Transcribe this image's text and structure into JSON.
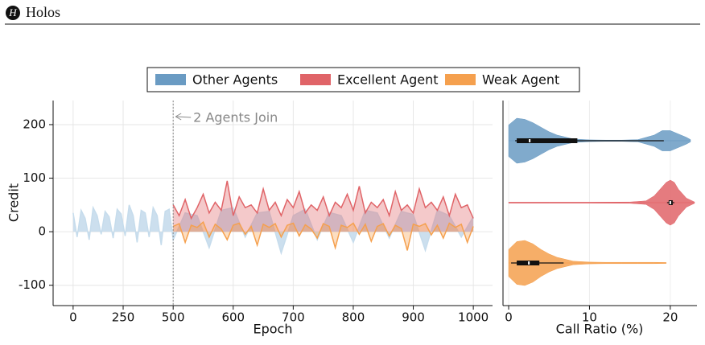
{
  "header": {
    "title": "Holos"
  },
  "chart_data": [
    {
      "type": "line",
      "annotation": {
        "text": "2 Agents Join",
        "x": 500
      },
      "xlabel": "Epoch",
      "ylabel": "Credit",
      "xlim": [
        -100,
        1032
      ],
      "ylim": [
        -138,
        245
      ],
      "xticks": [
        0,
        250,
        500,
        600,
        700,
        800,
        900,
        1000
      ],
      "yticks": [
        -100,
        0,
        100,
        200
      ],
      "grid": true,
      "series": [
        {
          "name": "Other Agents",
          "color": "#6a9bc3",
          "fill_color": "#c6dcec",
          "x": [
            0,
            20,
            40,
            60,
            80,
            100,
            120,
            140,
            160,
            180,
            200,
            220,
            240,
            260,
            280,
            300,
            320,
            340,
            360,
            380,
            400,
            420,
            440,
            460,
            480,
            500,
            520,
            540,
            560,
            580,
            600,
            620,
            640,
            660,
            680,
            700,
            720,
            740,
            760,
            780,
            800,
            820,
            840,
            860,
            880,
            900,
            920,
            940,
            960,
            980,
            1000
          ],
          "values": [
            35,
            -10,
            40,
            25,
            -15,
            45,
            30,
            -5,
            38,
            28,
            -12,
            42,
            33,
            -8,
            50,
            30,
            -20,
            40,
            35,
            -10,
            45,
            30,
            -25,
            38,
            42,
            -15,
            35,
            30,
            -30,
            40,
            45,
            -10,
            35,
            38,
            -40,
            30,
            42,
            -15,
            36,
            30,
            -20,
            40,
            35,
            -12,
            38,
            32,
            -35,
            40,
            30,
            -10,
            28
          ]
        },
        {
          "name": "Excellent Agent",
          "color": "#e06468",
          "x": [
            500,
            510,
            520,
            530,
            540,
            550,
            560,
            570,
            580,
            590,
            600,
            610,
            620,
            630,
            640,
            650,
            660,
            670,
            680,
            690,
            700,
            710,
            720,
            730,
            740,
            750,
            760,
            770,
            780,
            790,
            800,
            810,
            820,
            830,
            840,
            850,
            860,
            870,
            880,
            890,
            900,
            910,
            920,
            930,
            940,
            950,
            960,
            970,
            980,
            990,
            1000
          ],
          "values": [
            50,
            30,
            60,
            25,
            45,
            70,
            35,
            55,
            40,
            95,
            30,
            65,
            45,
            50,
            35,
            80,
            40,
            55,
            30,
            60,
            45,
            75,
            35,
            50,
            40,
            65,
            30,
            55,
            45,
            70,
            40,
            85,
            35,
            55,
            45,
            60,
            30,
            75,
            40,
            50,
            35,
            80,
            45,
            55,
            40,
            65,
            30,
            70,
            45,
            50,
            25
          ]
        },
        {
          "name": "Weak Agent",
          "color": "#f5a04e",
          "x": [
            500,
            510,
            520,
            530,
            540,
            550,
            560,
            570,
            580,
            590,
            600,
            610,
            620,
            630,
            640,
            650,
            660,
            670,
            680,
            690,
            700,
            710,
            720,
            730,
            740,
            750,
            760,
            770,
            780,
            790,
            800,
            810,
            820,
            830,
            840,
            850,
            860,
            870,
            880,
            890,
            900,
            910,
            920,
            930,
            940,
            950,
            960,
            970,
            980,
            990,
            1000
          ],
          "values": [
            10,
            15,
            -20,
            12,
            8,
            18,
            -10,
            14,
            5,
            -15,
            12,
            16,
            -5,
            10,
            -25,
            14,
            8,
            15,
            -10,
            12,
            16,
            -8,
            13,
            5,
            -12,
            15,
            10,
            -30,
            12,
            8,
            16,
            -5,
            14,
            -18,
            10,
            15,
            -8,
            12,
            6,
            -35,
            14,
            10,
            15,
            -6,
            12,
            -12,
            16,
            8,
            14,
            -20,
            10
          ]
        }
      ]
    },
    {
      "type": "violin",
      "xlabel": "Call Ratio (%)",
      "xlim": [
        -0.7,
        23.3
      ],
      "xticks": [
        0,
        10,
        20
      ],
      "grid": true,
      "violins": [
        {
          "color": "#6a9bc3",
          "kde_x": [
            0,
            1,
            2,
            3,
            4,
            5,
            6,
            8,
            10,
            12,
            14,
            16,
            18,
            19,
            20,
            21,
            22,
            22.5
          ],
          "density": [
            0.7,
            1,
            0.95,
            0.8,
            0.6,
            0.4,
            0.25,
            0.08,
            0.04,
            0.03,
            0.03,
            0.05,
            0.25,
            0.45,
            0.45,
            0.3,
            0.15,
            0.05
          ],
          "whislo": 0.8,
          "q1": 1,
          "median": 2.6,
          "q3": 8.5,
          "whishi": 19.2
        },
        {
          "color": "#e06468",
          "kde_x": [
            0,
            5,
            10,
            15,
            17,
            18,
            19,
            19.5,
            20,
            20.5,
            21,
            22,
            23
          ],
          "density": [
            0.02,
            0.02,
            0.02,
            0.03,
            0.08,
            0.3,
            0.7,
            0.9,
            1,
            0.9,
            0.6,
            0.2,
            0.03
          ],
          "whislo": 19.6,
          "q1": 19.8,
          "median": 20,
          "q3": 20.3,
          "whishi": 20.5
        },
        {
          "color": "#f5a04e",
          "kde_x": [
            0,
            1,
            2,
            3,
            4,
            5,
            6,
            8,
            10,
            12,
            14,
            16,
            18,
            19.5
          ],
          "density": [
            0.6,
            0.95,
            1,
            0.85,
            0.6,
            0.4,
            0.25,
            0.08,
            0.04,
            0.03,
            0.03,
            0.03,
            0.03,
            0.02
          ],
          "whislo": 0.3,
          "q1": 1,
          "median": 2.5,
          "q3": 3.8,
          "whishi": 6.8
        }
      ]
    }
  ]
}
